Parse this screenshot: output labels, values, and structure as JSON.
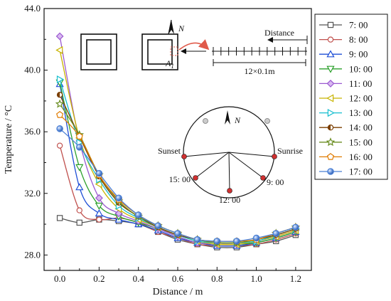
{
  "chart_data": {
    "type": "line",
    "xlabel": "Distance / m",
    "ylabel": "Temperature / °C",
    "xlim": [
      -0.08,
      1.28
    ],
    "ylim": [
      27.0,
      44.0
    ],
    "x_ticks": [
      0.0,
      0.2,
      0.4,
      0.6,
      0.8,
      1.0,
      1.2
    ],
    "x_tick_labels": [
      "0.0",
      "0.2",
      "0.4",
      "0.6",
      "0.8",
      "1.0",
      "1.2"
    ],
    "y_ticks": [
      28.0,
      32.0,
      36.0,
      40.0,
      44.0
    ],
    "y_tick_labels": [
      "28.0",
      "32.0",
      "36.0",
      "40.0",
      "44.0"
    ],
    "legend_position": "right",
    "x": [
      0.0,
      0.1,
      0.2,
      0.3,
      0.4,
      0.5,
      0.6,
      0.7,
      0.8,
      0.9,
      1.0,
      1.1,
      1.2
    ],
    "series": [
      {
        "name": "7: 00",
        "marker": "square",
        "color": "#555555",
        "values": [
          30.4,
          30.1,
          30.3,
          30.2,
          30.0,
          29.5,
          29.0,
          28.7,
          28.5,
          28.5,
          28.7,
          28.9,
          29.3
        ]
      },
      {
        "name": "8: 00",
        "marker": "circle",
        "color": "#c0504d",
        "values": [
          35.1,
          30.9,
          30.3,
          30.4,
          30.1,
          29.5,
          29.1,
          28.7,
          28.6,
          28.6,
          28.7,
          29.0,
          29.4
        ]
      },
      {
        "name": "9: 00",
        "marker": "triangle-up",
        "color": "#1f4fd6",
        "values": [
          39.1,
          32.4,
          30.7,
          30.3,
          30.0,
          29.6,
          29.1,
          28.8,
          28.6,
          28.6,
          28.8,
          29.1,
          29.5
        ]
      },
      {
        "name": "10: 00",
        "marker": "triangle-down",
        "color": "#2ca02c",
        "values": [
          39.2,
          33.7,
          31.2,
          30.5,
          30.1,
          29.7,
          29.2,
          28.8,
          28.7,
          28.7,
          28.8,
          29.1,
          29.5
        ]
      },
      {
        "name": "11: 00",
        "marker": "diamond",
        "color": "#9b59d0",
        "values": [
          42.2,
          35.4,
          31.7,
          30.7,
          30.2,
          29.7,
          29.2,
          28.8,
          28.7,
          28.7,
          28.9,
          29.2,
          29.6
        ]
      },
      {
        "name": "12: 00",
        "marker": "triangle-left",
        "color": "#c8b400",
        "values": [
          41.3,
          35.6,
          32.6,
          31.0,
          30.3,
          29.8,
          29.3,
          28.9,
          28.7,
          28.7,
          28.9,
          29.2,
          29.6
        ]
      },
      {
        "name": "13: 00",
        "marker": "triangle-right",
        "color": "#17becf",
        "values": [
          39.4,
          35.3,
          32.9,
          31.2,
          30.4,
          29.8,
          29.3,
          28.9,
          28.8,
          28.8,
          28.9,
          29.3,
          29.7
        ]
      },
      {
        "name": "14: 00",
        "marker": "half-circle",
        "color": "#7b3f00",
        "values": [
          38.4,
          35.7,
          33.1,
          31.4,
          30.5,
          29.8,
          29.3,
          29.0,
          28.8,
          28.8,
          29.0,
          29.3,
          29.7
        ]
      },
      {
        "name": "15: 00",
        "marker": "star",
        "color": "#6b8e23",
        "values": [
          37.8,
          35.8,
          33.2,
          31.5,
          30.5,
          29.9,
          29.4,
          29.0,
          28.8,
          28.8,
          29.0,
          29.4,
          29.8
        ]
      },
      {
        "name": "16: 00",
        "marker": "pentagon",
        "color": "#e07b00",
        "values": [
          37.1,
          35.7,
          33.2,
          31.6,
          30.6,
          29.9,
          29.4,
          29.0,
          28.9,
          28.9,
          29.0,
          29.4,
          29.8
        ]
      },
      {
        "name": "17: 00",
        "marker": "sphere",
        "color": "#4a7fd4",
        "values": [
          36.2,
          35.0,
          33.3,
          31.7,
          30.6,
          29.9,
          29.4,
          29.0,
          28.9,
          28.9,
          29.1,
          29.4,
          29.8
        ]
      }
    ],
    "inset": {
      "north_label": "N",
      "point_label": "A1",
      "distance_label": "Distance",
      "scale_label": "12×0.1m",
      "sunrise_label": "Sunrise",
      "sunset_label": "Sunset",
      "time_labels": [
        "15: 00",
        "12: 00",
        "9: 00"
      ]
    }
  }
}
